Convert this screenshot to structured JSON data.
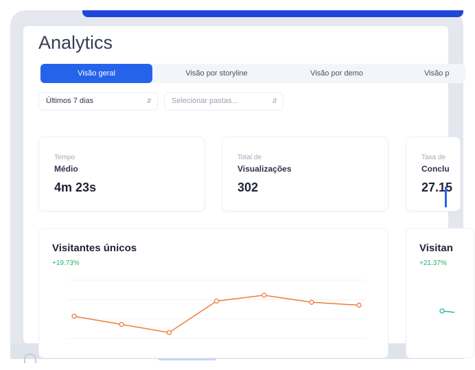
{
  "page": {
    "title": "Analytics"
  },
  "tabs": [
    {
      "label": "Visão geral",
      "active": true
    },
    {
      "label": "Visão por storyline",
      "active": false
    },
    {
      "label": "Visão por demo",
      "active": false
    },
    {
      "label": "Visão p",
      "active": false
    }
  ],
  "filters": {
    "period": "Últimos 7 dias",
    "folders_placeholder": "Selecionar pastas..."
  },
  "stats": [
    {
      "label1": "Tempo",
      "label2": "Médio",
      "value": "4m 23s"
    },
    {
      "label1": "Total de",
      "label2": "Visualizações",
      "value": "302"
    },
    {
      "label1": "Taxa de",
      "label2": "Conclu",
      "value": "27.15"
    }
  ],
  "charts": [
    {
      "title": "Visitantes únicos",
      "delta": "+19.73%"
    },
    {
      "title": "Visitan",
      "delta": "+21.37%"
    }
  ],
  "chart_data": {
    "type": "line",
    "title": "Visitantes únicos",
    "series": [
      {
        "values": [
          0.38,
          0.24,
          0.1,
          0.64,
          0.74,
          0.62,
          0.57
        ]
      }
    ],
    "color": "#f07a3a",
    "grid": true,
    "note_scale": "relative (no y-axis labels visible)"
  },
  "colors": {
    "accent": "#2563eb",
    "positive": "#22b36b",
    "line": "#f07a3a"
  }
}
